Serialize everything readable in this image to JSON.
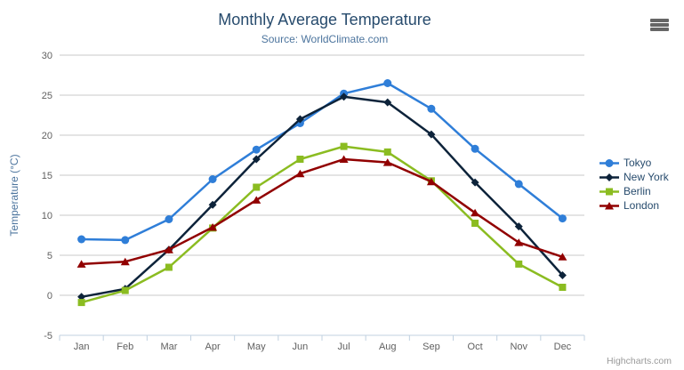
{
  "chart_data": {
    "type": "line",
    "title": "Monthly Average Temperature",
    "subtitle": "Source: WorldClimate.com",
    "xlabel": "",
    "ylabel": "Temperature (°C)",
    "categories": [
      "Jan",
      "Feb",
      "Mar",
      "Apr",
      "May",
      "Jun",
      "Jul",
      "Aug",
      "Sep",
      "Oct",
      "Nov",
      "Dec"
    ],
    "ylim": [
      -5,
      30
    ],
    "yticks": [
      -5,
      0,
      5,
      10,
      15,
      20,
      25,
      30
    ],
    "grid": true,
    "legend_position": "right-middle",
    "series": [
      {
        "name": "Tokyo",
        "color": "#2f7ed8",
        "marker": "circle",
        "values": [
          7.0,
          6.9,
          9.5,
          14.5,
          18.2,
          21.5,
          25.2,
          26.5,
          23.3,
          18.3,
          13.9,
          9.6
        ]
      },
      {
        "name": "New York",
        "color": "#0d233a",
        "marker": "diamond",
        "values": [
          -0.2,
          0.8,
          5.7,
          11.3,
          17.0,
          22.0,
          24.8,
          24.1,
          20.1,
          14.1,
          8.6,
          2.5
        ]
      },
      {
        "name": "Berlin",
        "color": "#8bbc21",
        "marker": "square",
        "values": [
          -0.9,
          0.6,
          3.5,
          8.4,
          13.5,
          17.0,
          18.6,
          17.9,
          14.3,
          9.0,
          3.9,
          1.0
        ]
      },
      {
        "name": "London",
        "color": "#910000",
        "marker": "triangle",
        "values": [
          3.9,
          4.2,
          5.7,
          8.5,
          11.9,
          15.2,
          17.0,
          16.6,
          14.2,
          10.3,
          6.6,
          4.8
        ]
      }
    ]
  },
  "credits": {
    "label": "Highcharts.com"
  },
  "export_menu": {
    "icon": "hamburger-menu-icon"
  },
  "colors": {
    "background": "#ffffff",
    "title_text": "#274b6d",
    "subtitle_text": "#4d759e",
    "axis_label_text": "#606060",
    "axis_title_text": "#4d759e",
    "grid_line": "#c8c8c8",
    "axis_line": "#c0d0e0",
    "tick_mark": "#c0d0e0",
    "legend_text": "#274b6d",
    "credits_text": "#999999",
    "menu_icon": "#666666"
  }
}
